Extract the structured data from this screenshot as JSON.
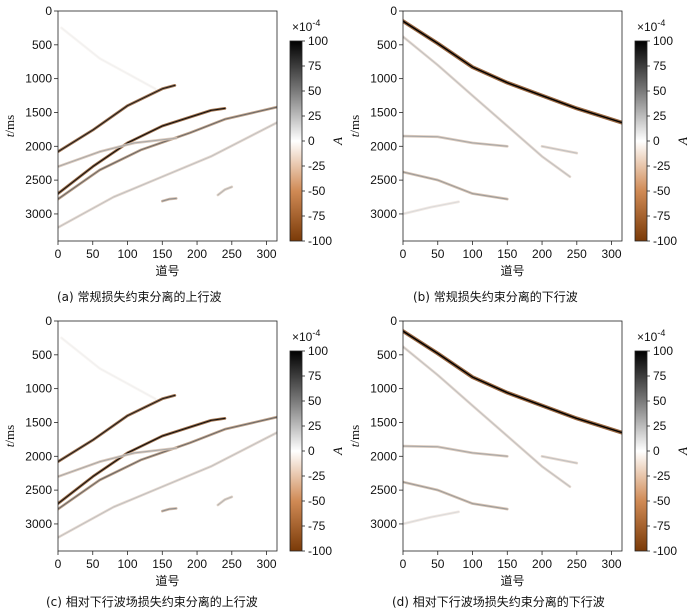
{
  "chart_data": [
    {
      "id": "a",
      "type": "heatmap",
      "caption": "(a) 常规损失约束分离的上行波",
      "xlabel": "道号",
      "ylabel_italic": "t",
      "ylabel_unit": "/ms",
      "xlim": [
        0,
        315
      ],
      "ylim": [
        3400,
        0
      ],
      "xticks": [
        0,
        50,
        100,
        150,
        200,
        250,
        300
      ],
      "yticks": [
        0,
        500,
        1000,
        1500,
        2000,
        2500,
        3000
      ],
      "colorbar": {
        "label": "A",
        "exponent": "×10-4",
        "range": [
          -100,
          100
        ],
        "ticks": [
          100,
          75,
          50,
          25,
          0,
          -25,
          -50,
          -75,
          -100
        ]
      },
      "events": [
        {
          "points": [
            [
              0,
              2080
            ],
            [
              50,
              1760
            ],
            [
              100,
              1400
            ],
            [
              150,
              1150
            ],
            [
              168,
              1100
            ]
          ],
          "amplitude": 90,
          "band": 22
        },
        {
          "points": [
            [
              0,
              2700
            ],
            [
              50,
              2300
            ],
            [
              100,
              1950
            ],
            [
              150,
              1700
            ],
            [
              220,
              1470
            ],
            [
              240,
              1440
            ]
          ],
          "amplitude": 95,
          "band": 22
        },
        {
          "points": [
            [
              0,
              2780
            ],
            [
              60,
              2350
            ],
            [
              120,
              2050
            ],
            [
              190,
              1800
            ],
            [
              240,
              1600
            ],
            [
              315,
              1420
            ]
          ],
          "amplitude": 60,
          "band": 16
        },
        {
          "points": [
            [
              0,
              3200
            ],
            [
              80,
              2750
            ],
            [
              150,
              2450
            ],
            [
              220,
              2150
            ],
            [
              315,
              1650
            ]
          ],
          "amplitude": 25,
          "band": 12
        },
        {
          "points": [
            [
              0,
              2300
            ],
            [
              60,
              2080
            ],
            [
              110,
              1950
            ],
            [
              170,
              1880
            ]
          ],
          "amplitude": 35,
          "band": 10
        },
        {
          "points": [
            [
              150,
              2810
            ],
            [
              160,
              2780
            ],
            [
              170,
              2770
            ]
          ],
          "amplitude": 45,
          "band": 10
        },
        {
          "points": [
            [
              230,
              2720
            ],
            [
              240,
              2640
            ],
            [
              250,
              2600
            ]
          ],
          "amplitude": 30,
          "band": 10
        },
        {
          "points": [
            [
              5,
              250
            ],
            [
              60,
              700
            ],
            [
              140,
              1150
            ]
          ],
          "amplitude": 6,
          "band": 10
        }
      ]
    },
    {
      "id": "b",
      "type": "heatmap",
      "caption": "(b) 常规损失约束分离的下行波",
      "xlabel": "道号",
      "ylabel_italic": "t",
      "ylabel_unit": "/ms",
      "xlim": [
        0,
        315
      ],
      "ylim": [
        3400,
        0
      ],
      "xticks": [
        0,
        50,
        100,
        150,
        200,
        250,
        300
      ],
      "yticks": [
        0,
        500,
        1000,
        1500,
        2000,
        2500,
        3000
      ],
      "colorbar": {
        "label": "A",
        "exponent": "×10-4",
        "range": [
          -100,
          100
        ],
        "ticks": [
          100,
          75,
          50,
          25,
          0,
          -25,
          -50,
          -75,
          -100
        ]
      },
      "events": [
        {
          "points": [
            [
              0,
              150
            ],
            [
              50,
              480
            ],
            [
              100,
              830
            ],
            [
              150,
              1060
            ],
            [
              200,
              1250
            ],
            [
              250,
              1440
            ],
            [
              315,
              1650
            ]
          ],
          "amplitude": 100,
          "band": 30
        },
        {
          "points": [
            [
              0,
              380
            ],
            [
              50,
              800
            ],
            [
              100,
              1250
            ],
            [
              150,
              1700
            ],
            [
              200,
              2150
            ],
            [
              240,
              2450
            ]
          ],
          "amplitude": 25,
          "band": 14
        },
        {
          "points": [
            [
              0,
              1850
            ],
            [
              50,
              1860
            ],
            [
              100,
              1950
            ],
            [
              150,
              2000
            ]
          ],
          "amplitude": 35,
          "band": 14
        },
        {
          "points": [
            [
              0,
              2380
            ],
            [
              50,
              2500
            ],
            [
              100,
              2700
            ],
            [
              150,
              2780
            ]
          ],
          "amplitude": 40,
          "band": 16
        },
        {
          "points": [
            [
              200,
              2000
            ],
            [
              230,
              2060
            ],
            [
              250,
              2100
            ]
          ],
          "amplitude": 25,
          "band": 12
        },
        {
          "points": [
            [
              0,
              3000
            ],
            [
              40,
              2900
            ],
            [
              80,
              2820
            ]
          ],
          "amplitude": 15,
          "band": 12
        }
      ]
    },
    {
      "id": "c",
      "type": "heatmap",
      "caption": "(c) 相对下行波场损失约束分离的上行波",
      "xlabel": "道号",
      "ylabel_italic": "t",
      "ylabel_unit": "/ms",
      "xlim": [
        0,
        315
      ],
      "ylim": [
        3400,
        0
      ],
      "xticks": [
        0,
        50,
        100,
        150,
        200,
        250,
        300
      ],
      "yticks": [
        0,
        500,
        1000,
        1500,
        2000,
        2500,
        3000
      ],
      "colorbar": {
        "label": "A",
        "exponent": "×10-4",
        "range": [
          -100,
          100
        ],
        "ticks": [
          100,
          75,
          50,
          25,
          0,
          -25,
          -50,
          -75,
          -100
        ]
      },
      "events": [
        {
          "points": [
            [
              0,
              2080
            ],
            [
              50,
              1760
            ],
            [
              100,
              1400
            ],
            [
              150,
              1150
            ],
            [
              168,
              1100
            ]
          ],
          "amplitude": 90,
          "band": 22
        },
        {
          "points": [
            [
              0,
              2700
            ],
            [
              50,
              2300
            ],
            [
              100,
              1950
            ],
            [
              150,
              1700
            ],
            [
              220,
              1470
            ],
            [
              240,
              1440
            ]
          ],
          "amplitude": 95,
          "band": 22
        },
        {
          "points": [
            [
              0,
              2780
            ],
            [
              60,
              2350
            ],
            [
              120,
              2050
            ],
            [
              190,
              1800
            ],
            [
              240,
              1600
            ],
            [
              315,
              1420
            ]
          ],
          "amplitude": 60,
          "band": 16
        },
        {
          "points": [
            [
              0,
              3200
            ],
            [
              80,
              2750
            ],
            [
              150,
              2450
            ],
            [
              220,
              2150
            ],
            [
              315,
              1650
            ]
          ],
          "amplitude": 25,
          "band": 12
        },
        {
          "points": [
            [
              0,
              2300
            ],
            [
              60,
              2080
            ],
            [
              110,
              1950
            ],
            [
              170,
              1880
            ]
          ],
          "amplitude": 35,
          "band": 10
        },
        {
          "points": [
            [
              150,
              2810
            ],
            [
              160,
              2780
            ],
            [
              170,
              2770
            ]
          ],
          "amplitude": 45,
          "band": 10
        },
        {
          "points": [
            [
              230,
              2720
            ],
            [
              240,
              2640
            ],
            [
              250,
              2600
            ]
          ],
          "amplitude": 30,
          "band": 10
        },
        {
          "points": [
            [
              5,
              250
            ],
            [
              60,
              700
            ],
            [
              140,
              1150
            ]
          ],
          "amplitude": 6,
          "band": 10
        }
      ]
    },
    {
      "id": "d",
      "type": "heatmap",
      "caption": "(d) 相对下行波场损失约束分离的下行波",
      "xlabel": "道号",
      "ylabel_italic": "t",
      "ylabel_unit": "/ms",
      "xlim": [
        0,
        315
      ],
      "ylim": [
        3400,
        0
      ],
      "xticks": [
        0,
        50,
        100,
        150,
        200,
        250,
        300
      ],
      "yticks": [
        0,
        500,
        1000,
        1500,
        2000,
        2500,
        3000
      ],
      "colorbar": {
        "label": "A",
        "exponent": "×10-4",
        "range": [
          -100,
          100
        ],
        "ticks": [
          100,
          75,
          50,
          25,
          0,
          -25,
          -50,
          -75,
          -100
        ]
      },
      "events": [
        {
          "points": [
            [
              0,
              150
            ],
            [
              50,
              480
            ],
            [
              100,
              830
            ],
            [
              150,
              1060
            ],
            [
              200,
              1250
            ],
            [
              250,
              1440
            ],
            [
              315,
              1650
            ]
          ],
          "amplitude": 100,
          "band": 30
        },
        {
          "points": [
            [
              0,
              380
            ],
            [
              50,
              800
            ],
            [
              100,
              1250
            ],
            [
              150,
              1700
            ],
            [
              200,
              2150
            ],
            [
              240,
              2450
            ]
          ],
          "amplitude": 25,
          "band": 14
        },
        {
          "points": [
            [
              0,
              1850
            ],
            [
              50,
              1860
            ],
            [
              100,
              1950
            ],
            [
              150,
              2000
            ]
          ],
          "amplitude": 35,
          "band": 14
        },
        {
          "points": [
            [
              0,
              2380
            ],
            [
              50,
              2500
            ],
            [
              100,
              2700
            ],
            [
              150,
              2780
            ]
          ],
          "amplitude": 40,
          "band": 16
        },
        {
          "points": [
            [
              200,
              2000
            ],
            [
              230,
              2060
            ],
            [
              250,
              2100
            ]
          ],
          "amplitude": 25,
          "band": 12
        },
        {
          "points": [
            [
              0,
              3000
            ],
            [
              40,
              2900
            ],
            [
              80,
              2820
            ]
          ],
          "amplitude": 15,
          "band": 12
        }
      ]
    }
  ]
}
